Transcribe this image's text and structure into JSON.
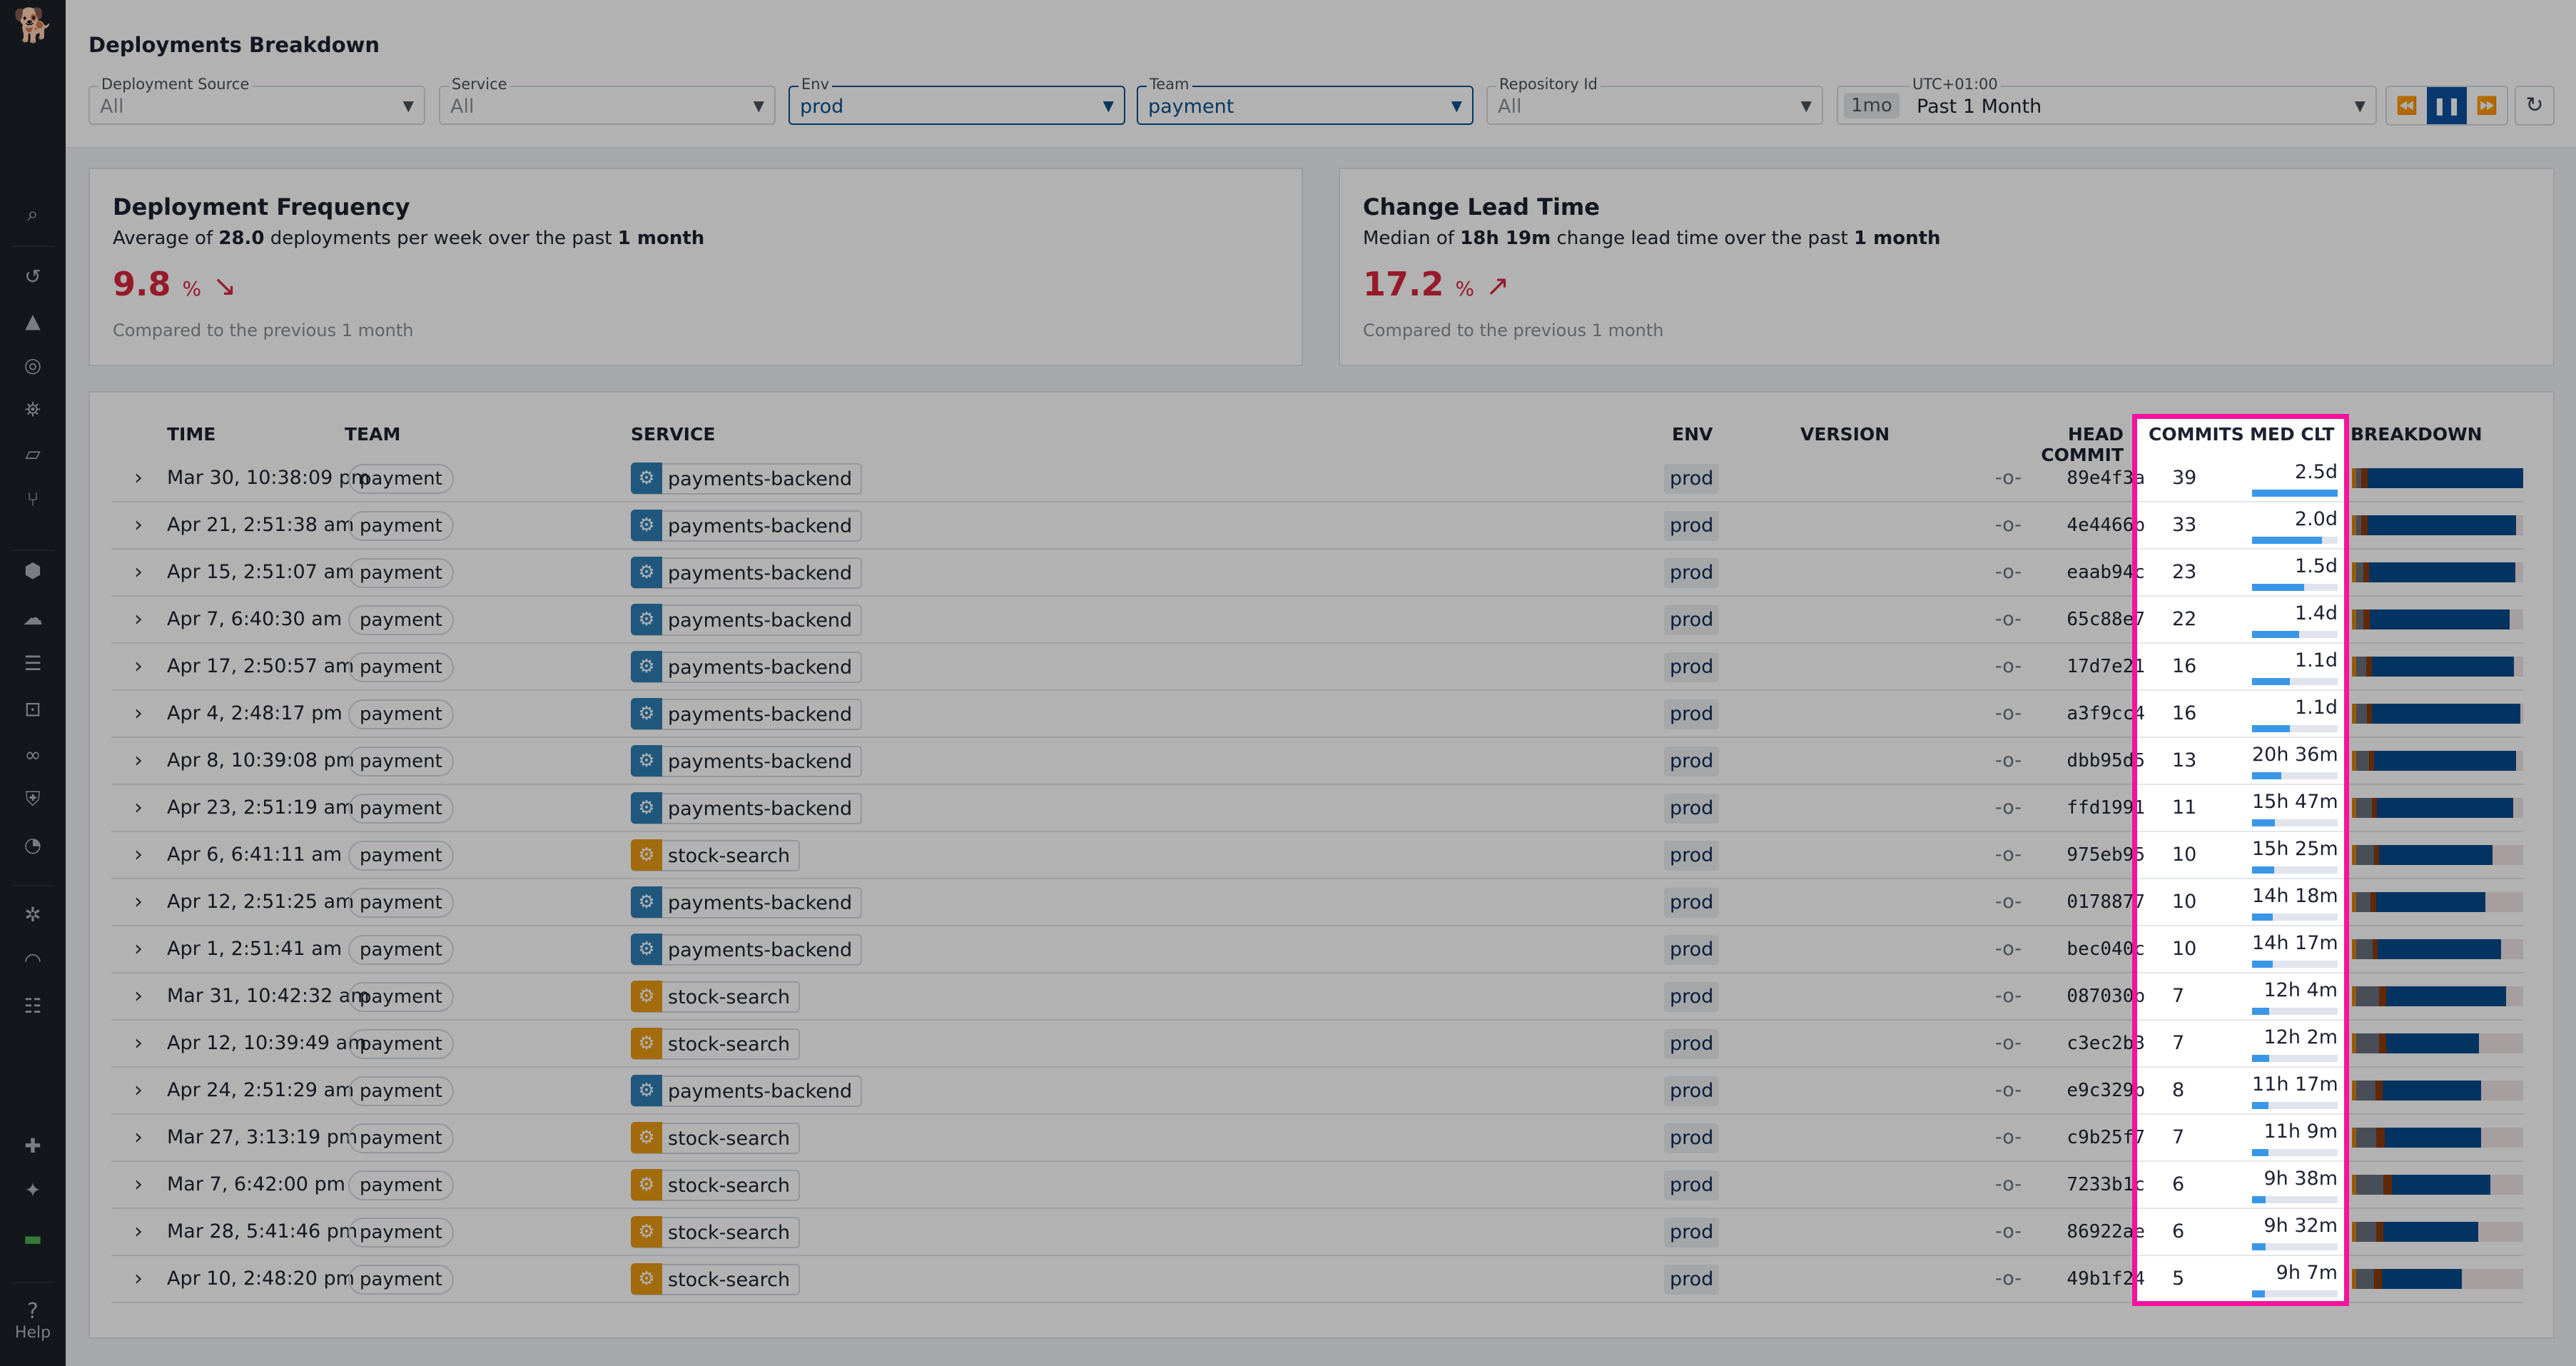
{
  "sidebar": {
    "icons": [
      "search-icon",
      "history-icon",
      "dashboards-icon",
      "monitors-icon",
      "binoculars-icon",
      "infrastructure-icon",
      "workflows-icon",
      "integrations-icon",
      "cloud-cost-icon",
      "logs-icon",
      "apm-icon",
      "synthetics-icon",
      "security-icon",
      "rum-icon",
      "bug-icon",
      "performance-icon",
      "ci-visibility-icon",
      "extensions-icon",
      "sparkle-icon",
      "toolbox-icon"
    ],
    "help_label": "Help"
  },
  "header": {
    "title": "Deployments Breakdown"
  },
  "filters": [
    {
      "label": "Deployment Source",
      "value": "All",
      "active": false
    },
    {
      "label": "Service",
      "value": "All",
      "active": false
    },
    {
      "label": "Env",
      "value": "prod",
      "active": true
    },
    {
      "label": "Team",
      "value": "payment",
      "active": true
    },
    {
      "label": "Repository Id",
      "value": "All",
      "active": false
    }
  ],
  "time_picker": {
    "label": "UTC+01:00",
    "chip": "1mo",
    "value": "Past 1 Month"
  },
  "cards": {
    "frequency": {
      "title": "Deployment Frequency",
      "desc_pre": "Average of ",
      "desc_bold1": "28.0",
      "desc_mid": " deployments per week over the past ",
      "desc_bold2": "1 month",
      "value": "9.8",
      "unit": "%",
      "trend": "down",
      "compare": "Compared to the previous 1 month"
    },
    "lead_time": {
      "title": "Change Lead Time",
      "desc_pre": "Median of ",
      "desc_bold1": "18h 19m",
      "desc_mid": " change lead time over the past ",
      "desc_bold2": "1 month",
      "value": "17.2",
      "unit": "%",
      "trend": "up",
      "compare": "Compared to the previous 1 month"
    }
  },
  "colors": {
    "accent": "#0b4f8a",
    "negative": "#d6283e",
    "highlight": "#f5139c",
    "clt_bar": "#3a97e8",
    "breakdown": [
      "#d9820f",
      "#66707f",
      "#8c3a08",
      "#054a8c"
    ]
  },
  "table": {
    "columns": [
      "TIME",
      "TEAM",
      "SERVICE",
      "ENV",
      "VERSION",
      "HEAD COMMIT",
      "COMMITS",
      "MED CLT",
      "BREAKDOWN"
    ],
    "rows": [
      {
        "time": "Mar 30, 10:38:09 pm",
        "team": "payment",
        "service": "payments-backend",
        "env": "prod",
        "commit": "89e4f3a",
        "commits": "39",
        "med_clt": "2.5d",
        "clt_fraction": 1.0,
        "breakdown": [
          0.026,
          0.03,
          0.035,
          0.909
        ]
      },
      {
        "time": "Apr 21, 2:51:38 am",
        "team": "payment",
        "service": "payments-backend",
        "env": "prod",
        "commit": "4e4466b",
        "commits": "33",
        "med_clt": "2.0d",
        "clt_fraction": 0.82,
        "breakdown": [
          0.026,
          0.03,
          0.035,
          0.868
        ]
      },
      {
        "time": "Apr 15, 2:51:07 am",
        "team": "payment",
        "service": "payments-backend",
        "env": "prod",
        "commit": "eaab94c",
        "commits": "23",
        "med_clt": "1.5d",
        "clt_fraction": 0.61,
        "breakdown": [
          0.026,
          0.042,
          0.03,
          0.856
        ]
      },
      {
        "time": "Apr 7, 6:40:30 am",
        "team": "payment",
        "service": "payments-backend",
        "env": "prod",
        "commit": "65c88e7",
        "commits": "22",
        "med_clt": "1.4d",
        "clt_fraction": 0.55,
        "breakdown": [
          0.026,
          0.042,
          0.035,
          0.817
        ]
      },
      {
        "time": "Apr 17, 2:50:57 am",
        "team": "payment",
        "service": "payments-backend",
        "env": "prod",
        "commit": "17d7e21",
        "commits": "16",
        "med_clt": "1.1d",
        "clt_fraction": 0.44,
        "breakdown": [
          0.026,
          0.056,
          0.033,
          0.833
        ]
      },
      {
        "time": "Apr 4, 2:48:17 pm",
        "team": "payment",
        "service": "payments-backend",
        "env": "prod",
        "commit": "a3f9cc4",
        "commits": "16",
        "med_clt": "1.1d",
        "clt_fraction": 0.44,
        "breakdown": [
          0.026,
          0.06,
          0.03,
          0.868
        ]
      },
      {
        "time": "Apr 8, 10:39:08 pm",
        "team": "payment",
        "service": "payments-backend",
        "env": "prod",
        "commit": "dbb95d5",
        "commits": "13",
        "med_clt": "20h 36m",
        "clt_fraction": 0.345,
        "breakdown": [
          0.026,
          0.072,
          0.033,
          0.829
        ]
      },
      {
        "time": "Apr 23, 2:51:19 am",
        "team": "payment",
        "service": "payments-backend",
        "env": "prod",
        "commit": "ffd1991",
        "commits": "11",
        "med_clt": "15h 47m",
        "clt_fraction": 0.265,
        "breakdown": [
          0.026,
          0.09,
          0.028,
          0.797
        ]
      },
      {
        "time": "Apr 6, 6:41:11 am",
        "team": "payment",
        "service": "stock-search",
        "env": "prod",
        "commit": "975eb95",
        "commits": "10",
        "med_clt": "15h 25m",
        "clt_fraction": 0.26,
        "breakdown": [
          0.026,
          0.102,
          0.03,
          0.663
        ]
      },
      {
        "time": "Apr 12, 2:51:25 am",
        "team": "payment",
        "service": "payments-backend",
        "env": "prod",
        "commit": "0178877",
        "commits": "10",
        "med_clt": "14h 18m",
        "clt_fraction": 0.24,
        "breakdown": [
          0.026,
          0.084,
          0.03,
          0.64
        ]
      },
      {
        "time": "Apr 1, 2:51:41 am",
        "team": "payment",
        "service": "payments-backend",
        "env": "prod",
        "commit": "bec040c",
        "commits": "10",
        "med_clt": "14h 17m",
        "clt_fraction": 0.24,
        "breakdown": [
          0.026,
          0.093,
          0.03,
          0.723
        ]
      },
      {
        "time": "Mar 31, 10:42:32 am",
        "team": "payment",
        "service": "stock-search",
        "env": "prod",
        "commit": "087030b",
        "commits": "7",
        "med_clt": "12h 4m",
        "clt_fraction": 0.2,
        "breakdown": [
          0.026,
          0.132,
          0.042,
          0.7
        ]
      },
      {
        "time": "Apr 12, 10:39:49 am",
        "team": "payment",
        "service": "stock-search",
        "env": "prod",
        "commit": "c3ec2b3",
        "commits": "7",
        "med_clt": "12h 2m",
        "clt_fraction": 0.2,
        "breakdown": [
          0.026,
          0.132,
          0.042,
          0.541
        ]
      },
      {
        "time": "Apr 24, 2:51:29 am",
        "team": "payment",
        "service": "payments-backend",
        "env": "prod",
        "commit": "e9c329b",
        "commits": "8",
        "med_clt": "11h 17m",
        "clt_fraction": 0.19,
        "breakdown": [
          0.026,
          0.111,
          0.042,
          0.574
        ]
      },
      {
        "time": "Mar 27, 3:13:19 pm",
        "team": "payment",
        "service": "stock-search",
        "env": "prod",
        "commit": "c9b25f7",
        "commits": "7",
        "med_clt": "11h 9m",
        "clt_fraction": 0.19,
        "breakdown": [
          0.026,
          0.114,
          0.051,
          0.562
        ]
      },
      {
        "time": "Mar 7, 6:42:00 pm",
        "team": "payment",
        "service": "stock-search",
        "env": "prod",
        "commit": "7233b1c",
        "commits": "6",
        "med_clt": "9h 38m",
        "clt_fraction": 0.16,
        "breakdown": [
          0.026,
          0.156,
          0.051,
          0.575
        ]
      },
      {
        "time": "Mar 28, 5:41:46 pm",
        "team": "payment",
        "service": "stock-search",
        "env": "prod",
        "commit": "86922ae",
        "commits": "6",
        "med_clt": "9h 32m",
        "clt_fraction": 0.16,
        "breakdown": [
          0.026,
          0.114,
          0.042,
          0.557
        ]
      },
      {
        "time": "Apr 10, 2:48:20 pm",
        "team": "payment",
        "service": "stock-search",
        "env": "prod",
        "commit": "49b1f24",
        "commits": "5",
        "med_clt": "9h 7m",
        "clt_fraction": 0.15,
        "breakdown": [
          0.026,
          0.102,
          0.046,
          0.467
        ]
      }
    ]
  }
}
